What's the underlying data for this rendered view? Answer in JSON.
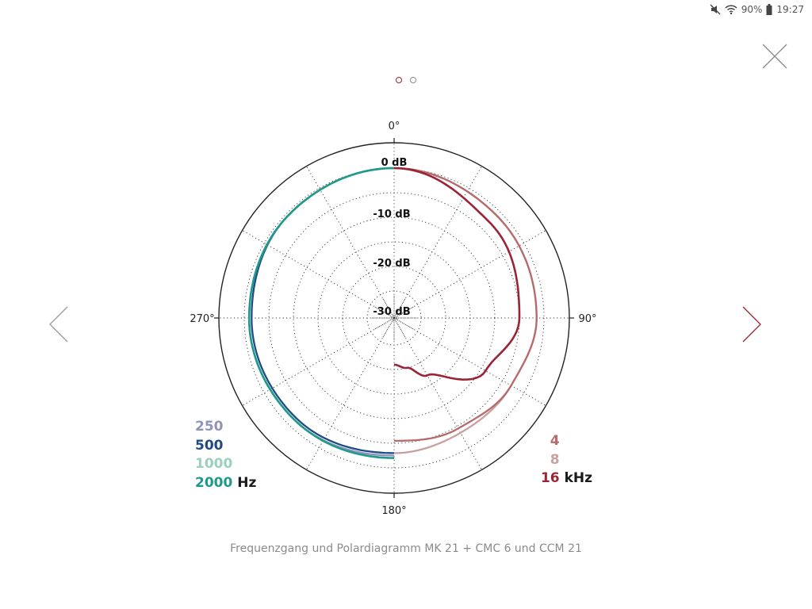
{
  "status_bar": {
    "icons": [
      "mute-icon",
      "wifi-icon",
      "battery-icon"
    ],
    "battery": "90%",
    "time": "19:27"
  },
  "pager": {
    "pages": 2,
    "active": 0
  },
  "polar": {
    "angle_labels": {
      "top": "0°",
      "right": "90°",
      "bottom": "180°",
      "left": "270°"
    },
    "ring_labels": [
      "0 dB",
      "-10 dB",
      "-20 dB",
      "-30 dB"
    ]
  },
  "legend_left": {
    "items": [
      {
        "label": "250",
        "color": "#8f93bc"
      },
      {
        "label": "500",
        "color": "#1f4a86"
      },
      {
        "label": "1000",
        "color": "#9ccfbc"
      },
      {
        "label": "2000",
        "color": "#1f9a8a"
      }
    ],
    "unit": "Hz"
  },
  "legend_right": {
    "items": [
      {
        "label": "4",
        "color": "#b86a6a"
      },
      {
        "label": "8",
        "color": "#c9a0a0"
      },
      {
        "label": "16",
        "color": "#9b2335"
      }
    ],
    "unit": "kHz"
  },
  "caption": "Frequenzgang und Polardiagramm MK 21 + CMC 6 und CCM 21",
  "colors": {
    "accent": "#9b2335",
    "grid": "#333333",
    "caption": "#8b8b8b"
  },
  "chart_data": {
    "type": "polar",
    "r_unit": "dB",
    "r_range": [
      -40,
      0
    ],
    "rings_db": [
      0,
      -10,
      -20,
      -30
    ],
    "series": [
      {
        "name": "250",
        "unit": "Hz",
        "side": "left",
        "points": [
          [
            0,
            0
          ],
          [
            45,
            -0.5
          ],
          [
            90,
            -1
          ],
          [
            135,
            -1.5
          ],
          [
            180,
            -2.5
          ]
        ]
      },
      {
        "name": "500",
        "unit": "Hz",
        "side": "left",
        "points": [
          [
            0,
            0
          ],
          [
            45,
            -0.5
          ],
          [
            90,
            -1.5
          ],
          [
            135,
            -2
          ],
          [
            180,
            -3
          ]
        ]
      },
      {
        "name": "1000",
        "unit": "Hz",
        "side": "left",
        "points": [
          [
            0,
            0
          ],
          [
            45,
            -0.5
          ],
          [
            90,
            -1
          ],
          [
            135,
            -1.5
          ],
          [
            180,
            -2
          ]
        ]
      },
      {
        "name": "2000",
        "unit": "Hz",
        "side": "left",
        "points": [
          [
            0,
            0
          ],
          [
            45,
            -0.5
          ],
          [
            90,
            -1
          ],
          [
            135,
            -1.5
          ],
          [
            180,
            -2
          ]
        ]
      },
      {
        "name": "4",
        "unit": "kHz",
        "side": "right",
        "points": [
          [
            0,
            0
          ],
          [
            45,
            -1
          ],
          [
            90,
            -1.5
          ],
          [
            120,
            -3
          ],
          [
            150,
            -4.5
          ],
          [
            180,
            -5.5
          ]
        ]
      },
      {
        "name": "8",
        "unit": "kHz",
        "side": "right",
        "points": [
          [
            0,
            0
          ],
          [
            45,
            -1
          ],
          [
            90,
            -1.5
          ],
          [
            120,
            -3
          ],
          [
            150,
            -3.5
          ],
          [
            180,
            -3
          ]
        ]
      },
      {
        "name": "16",
        "unit": "kHz",
        "side": "right",
        "points": [
          [
            0,
            0
          ],
          [
            45,
            -3
          ],
          [
            90,
            -5
          ],
          [
            120,
            -9
          ],
          [
            150,
            -17
          ],
          [
            165,
            -20
          ],
          [
            180,
            -21
          ]
        ]
      }
    ]
  }
}
